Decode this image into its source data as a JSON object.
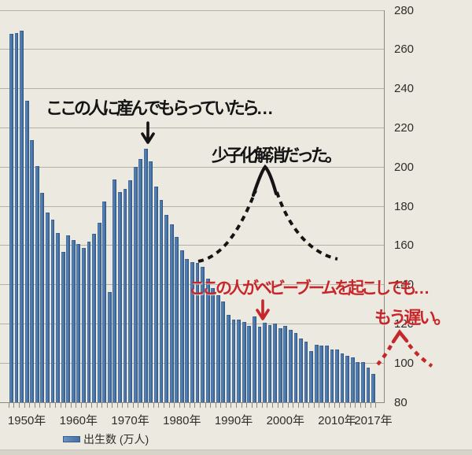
{
  "chart_data": {
    "type": "bar",
    "title": "",
    "xlabel": "",
    "ylabel": "",
    "ylim": [
      80,
      280
    ],
    "grid": "horizontal",
    "legend_position": "bottom-left",
    "bar_color": "#4f7cb2",
    "y_ticks": [
      80,
      100,
      120,
      140,
      160,
      180,
      200,
      220,
      240,
      260,
      280
    ],
    "x_tick_labels": [
      "1950年",
      "1960年",
      "1970年",
      "1980年",
      "1990年",
      "2000年",
      "2010年",
      "2017年"
    ],
    "series": [
      {
        "name": "出生数 (万人)",
        "years": [
          1947,
          1948,
          1949,
          1950,
          1951,
          1952,
          1953,
          1954,
          1955,
          1956,
          1957,
          1958,
          1959,
          1960,
          1961,
          1962,
          1963,
          1964,
          1965,
          1966,
          1967,
          1968,
          1969,
          1970,
          1971,
          1972,
          1973,
          1974,
          1975,
          1976,
          1977,
          1978,
          1979,
          1980,
          1981,
          1982,
          1983,
          1984,
          1985,
          1986,
          1987,
          1988,
          1989,
          1990,
          1991,
          1992,
          1993,
          1994,
          1995,
          1996,
          1997,
          1998,
          1999,
          2000,
          2001,
          2002,
          2003,
          2004,
          2005,
          2006,
          2007,
          2008,
          2009,
          2010,
          2011,
          2012,
          2013,
          2014,
          2015,
          2016,
          2017
        ],
        "values": [
          267.9,
          268.2,
          269.7,
          233.8,
          213.8,
          200.5,
          186.8,
          176.9,
          173.1,
          166.5,
          156.7,
          165.3,
          162.6,
          160.6,
          158.9,
          161.8,
          165.9,
          171.6,
          182.4,
          136.1,
          193.6,
          187.2,
          188.9,
          193.4,
          200.1,
          203.9,
          209.2,
          202.9,
          190.1,
          183.3,
          175.5,
          170.9,
          164.3,
          157.7,
          152.9,
          151.5,
          150.9,
          148.9,
          143.2,
          138.3,
          134.7,
          131.4,
          124.7,
          122.2,
          122.3,
          120.9,
          118.8,
          123.8,
          118.7,
          120.7,
          119.2,
          120.3,
          117.8,
          119.1,
          117.1,
          115.4,
          112.4,
          111.1,
          106.3,
          109.3,
          109.0,
          109.1,
          107.0,
          107.1,
          105.1,
          103.7,
          103.0,
          100.4,
          100.6,
          97.7,
          94.6
        ]
      }
    ]
  },
  "legend": {
    "label": "出生数 (万人)"
  },
  "annotations": {
    "note1": "ここの人に産んでもらっていたら…",
    "note2": "少子化解消だった。",
    "note3": "ここの人がベビーブームを起こしても…",
    "note4": "もう遅い。"
  },
  "icons": {
    "black_down_arrow": "↓",
    "red_down_arrow": "↓",
    "peak_curve": "dashed-tent",
    "red_caret": "dashed-caret"
  },
  "colors": {
    "background": "#ece9e0",
    "bar": "#4f7cb2",
    "bar_edge": "#385d8a",
    "gridline": "#b3b0a6",
    "axis": "#8b887f",
    "annotation_black": "#141414",
    "annotation_red": "#c5282a"
  }
}
